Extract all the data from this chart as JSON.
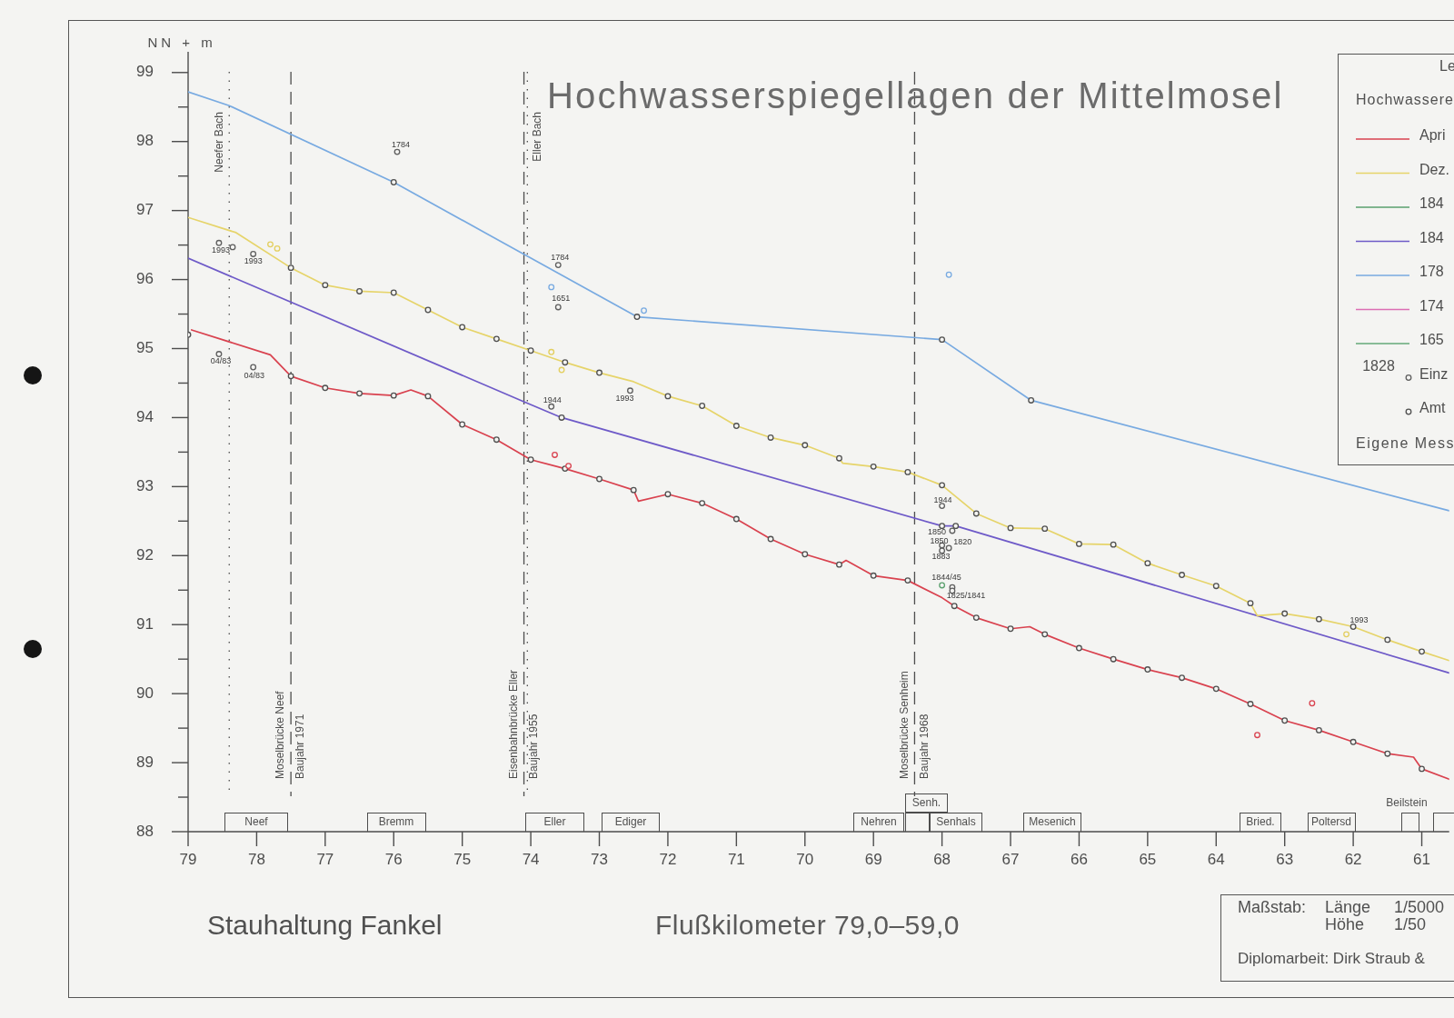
{
  "chart_data": {
    "type": "line",
    "title": "Hochwasserspiegellagen der Mittelmosel",
    "xlabel": "Flußkilometer 79,0–59,0",
    "ylabel": "NN + m",
    "legend_title": "Le",
    "legend": "top right",
    "grid": false,
    "xlim": [
      79,
      60.6
    ],
    "xticks": [
      79,
      78,
      77,
      76,
      75,
      74,
      73,
      72,
      71,
      70,
      69,
      68,
      67,
      66,
      65,
      64,
      63,
      62,
      61
    ],
    "ylim": [
      88,
      99.3
    ],
    "yticks": [
      88,
      {
        "value": 88.5,
        "label": null
      },
      89,
      {
        "value": 89.5,
        "label": null
      },
      90,
      {
        "value": 90.5,
        "label": null
      },
      91,
      {
        "value": 91.5,
        "label": null
      },
      92,
      {
        "value": 92.5,
        "label": null
      },
      93,
      {
        "value": 93.5,
        "label": null
      },
      94,
      {
        "value": 94.5,
        "label": null
      },
      95,
      {
        "value": 95.5,
        "label": null
      },
      96,
      {
        "value": 96.5,
        "label": null
      },
      97,
      {
        "value": 97.5,
        "label": null
      },
      98,
      {
        "value": 98.5,
        "label": null
      },
      99
    ],
    "series": [
      {
        "name": "Apri",
        "color": "#d9424f",
        "x": [
          78.95,
          77.8,
          77.5,
          77.0,
          76.5,
          76.0,
          75.75,
          75.5,
          75.0,
          74.5,
          74.0,
          73.5,
          73.0,
          72.5,
          72.43,
          72.0,
          71.5,
          71.0,
          70.5,
          70.0,
          69.5,
          69.4,
          69.0,
          68.5,
          68.0,
          67.82,
          67.5,
          67.0,
          66.72,
          66.5,
          66.0,
          65.5,
          65.0,
          64.5,
          64.0,
          63.5,
          63.0,
          62.5,
          62.0,
          61.5,
          61.12,
          61.0,
          60.6
        ],
        "values": [
          95.27,
          94.91,
          94.6,
          94.43,
          94.35,
          94.32,
          94.4,
          94.31,
          93.9,
          93.68,
          93.39,
          93.26,
          93.11,
          92.95,
          92.79,
          92.89,
          92.76,
          92.53,
          92.24,
          92.02,
          91.87,
          91.93,
          91.71,
          91.64,
          91.39,
          91.27,
          91.1,
          90.94,
          90.97,
          90.86,
          90.66,
          90.5,
          90.35,
          90.23,
          90.07,
          89.85,
          89.61,
          89.47,
          89.3,
          89.13,
          89.08,
          88.91,
          88.76
        ]
      },
      {
        "name": "Dez.",
        "color": "#e6d46a",
        "x": [
          79.0,
          78.3,
          77.5,
          77.0,
          76.5,
          76.0,
          75.5,
          75.0,
          74.5,
          74.0,
          73.5,
          73.0,
          72.5,
          72.0,
          71.5,
          71.0,
          70.5,
          70.0,
          69.5,
          69.45,
          69.0,
          68.5,
          68.0,
          67.5,
          67.0,
          66.5,
          66.0,
          65.5,
          65.0,
          64.5,
          64.0,
          63.5,
          63.4,
          63.0,
          62.5,
          62.0,
          61.5,
          61.0,
          60.6
        ],
        "values": [
          96.9,
          96.68,
          96.17,
          95.92,
          95.83,
          95.81,
          95.56,
          95.31,
          95.14,
          94.97,
          94.8,
          94.65,
          94.52,
          94.31,
          94.17,
          93.88,
          93.71,
          93.6,
          93.41,
          93.34,
          93.29,
          93.21,
          93.02,
          92.61,
          92.4,
          92.39,
          92.17,
          92.16,
          91.89,
          91.72,
          91.56,
          91.31,
          91.13,
          91.16,
          91.08,
          90.97,
          90.78,
          90.61,
          90.48
        ]
      },
      {
        "name": "184",
        "color": "#5aa06e"
      },
      {
        "name": "184",
        "color": "#6e5ac8",
        "x": [
          79.0,
          74.1,
          73.55,
          68.0,
          67.8,
          60.6
        ],
        "values": [
          96.31,
          94.23,
          94.0,
          92.43,
          92.43,
          90.3
        ]
      },
      {
        "name": "178",
        "color": "#78aae1",
        "x": [
          79.0,
          78.4,
          76.0,
          72.45,
          68.0,
          66.7,
          60.6
        ],
        "values": [
          98.72,
          98.52,
          97.41,
          95.46,
          95.13,
          94.25,
          92.65
        ]
      },
      {
        "name": "174",
        "color": "#dc6eb4"
      },
      {
        "name": "165",
        "color": "#64a878"
      },
      {
        "name": "Einz",
        "type": "scatter",
        "marker": "circle",
        "color": "#5f5f5f",
        "colors": [
          "#5f5f5f",
          "#5f5f5f",
          "#78aae1",
          "#5f5f5f",
          "#5f5f5f",
          "#5f5f5f",
          "#5f5f5f",
          "#5f5f5f",
          "#5f5f5f",
          "#5f5f5f",
          "#d9424f",
          "#d9424f",
          "#5f5f5f",
          "#78aae1",
          "#78aae1",
          "#5f5f5f",
          "#5f5f5f",
          "#5f5f5f",
          "#5f5f5f",
          "#5f5f5f",
          "#5aa06e",
          "#5f5f5f",
          "#5f5f5f",
          "#d9424f",
          "#d9424f",
          "#e3cf5f",
          "#e3cf5f",
          "#e3cf5f",
          "#e3cf5f",
          "#e3cf5f"
        ],
        "x": [
          75.95,
          73.6,
          73.7,
          73.6,
          73.7,
          78.55,
          78.35,
          78.05,
          78.55,
          78.05,
          73.65,
          73.45,
          72.55,
          72.35,
          67.9,
          68.0,
          67.85,
          68.0,
          67.9,
          68.0,
          68.0,
          67.85,
          67.85,
          62.6,
          63.4,
          77.8,
          77.7,
          73.7,
          73.55,
          62.1
        ],
        "values": [
          97.85,
          96.21,
          95.89,
          95.6,
          94.16,
          96.53,
          96.47,
          96.37,
          94.92,
          94.73,
          93.46,
          93.3,
          94.39,
          95.55,
          96.07,
          92.72,
          92.36,
          92.15,
          92.11,
          92.07,
          91.57,
          91.54,
          91.49,
          89.86,
          89.4,
          96.51,
          96.45,
          94.95,
          94.69,
          90.86
        ]
      },
      {
        "name": "Amt",
        "type": "scatter",
        "marker": "circle",
        "color": "#505050",
        "x": [
          79.0,
          77.5,
          77.0,
          76.5,
          76.0,
          75.5,
          75.0,
          74.5,
          74.0,
          73.5,
          73.0,
          72.5,
          72.0,
          71.5,
          71.0,
          70.5,
          70.0,
          69.5,
          69.0,
          68.5,
          67.82,
          67.5,
          67.0,
          66.5,
          66.0,
          65.5,
          65.0,
          64.5,
          64.0,
          63.5,
          63.0,
          62.5,
          62.0,
          61.5,
          61.0,
          77.5,
          77.0,
          76.5,
          76.0,
          75.5,
          75.0,
          74.5,
          74.0,
          73.5,
          73.0,
          72.0,
          71.5,
          71.0,
          70.5,
          70.0,
          69.5,
          69.0,
          68.5,
          68.0,
          67.5,
          67.0,
          66.5,
          66.0,
          65.5,
          65.0,
          64.5,
          64.0,
          63.5,
          63.0,
          62.5,
          62.0,
          61.5,
          61.0,
          76.0,
          72.45,
          68.0,
          66.7,
          73.55,
          68.0,
          67.8
        ],
        "values": [
          95.2,
          94.6,
          94.43,
          94.35,
          94.32,
          94.31,
          93.9,
          93.68,
          93.39,
          93.26,
          93.11,
          92.95,
          92.89,
          92.76,
          92.53,
          92.24,
          92.02,
          91.87,
          91.71,
          91.64,
          91.27,
          91.1,
          90.94,
          90.86,
          90.66,
          90.5,
          90.35,
          90.23,
          90.07,
          89.85,
          89.61,
          89.47,
          89.3,
          89.13,
          88.91,
          96.17,
          95.92,
          95.83,
          95.81,
          95.56,
          95.31,
          95.14,
          94.97,
          94.8,
          94.65,
          94.31,
          94.17,
          93.88,
          93.71,
          93.6,
          93.41,
          93.29,
          93.21,
          93.02,
          92.61,
          92.4,
          92.39,
          92.17,
          92.16,
          91.89,
          91.72,
          91.56,
          91.31,
          91.16,
          91.08,
          90.97,
          90.78,
          90.61,
          97.41,
          95.46,
          95.13,
          94.25,
          94.0,
          92.43,
          92.43
        ]
      }
    ],
    "ref_lines": [
      {
        "axis": "x",
        "value": 78.4,
        "label": "Neefer Bach",
        "line_style": "dotted"
      },
      {
        "axis": "x",
        "value": 77.5,
        "label": "Moselbrücke Neef\nBaujahr 1971",
        "line_style": "dashed"
      },
      {
        "axis": "x",
        "value": 74.1,
        "label": "Eisenbahnbrücke Eller\nBaujahr 1955",
        "line_style": "dashed"
      },
      {
        "axis": "x",
        "value": 74.05,
        "label": "Eller Bach",
        "line_style": "dotted"
      },
      {
        "axis": "x",
        "value": 68.4,
        "label": "Moselbrücke Senheim\nBaujahr 1968",
        "line_style": "dashed"
      }
    ],
    "annotations": [
      "Hochwassere",
      "Eigene Mess",
      "1828",
      "Stauhaltung Fankel",
      "Maßstab:",
      "Länge",
      "1/5000",
      "Höhe",
      "1/50",
      "Diplomarbeit: Dirk Straub &",
      "Neef",
      "Bremm",
      "Eller",
      "Ediger",
      "Nehren",
      "Senh.",
      "Senhals",
      "Mesenich",
      "Bried.",
      "Poltersd",
      "Beilstein",
      {
        "text": "1784",
        "x": 75.95,
        "y": 97.85
      },
      {
        "text": "1784",
        "x": 73.6,
        "y": 96.21
      },
      {
        "text": "1651",
        "x": 73.6,
        "y": 95.6
      },
      {
        "text": "1944",
        "x": 73.7,
        "y": 94.16
      },
      {
        "text": "1993",
        "x": 78.55,
        "y": 96.53
      },
      {
        "text": "1993",
        "x": 78.05,
        "y": 96.37
      },
      {
        "text": "04/83",
        "x": 78.55,
        "y": 94.92
      },
      {
        "text": "04/83",
        "x": 78.05,
        "y": 94.73
      },
      {
        "text": "1993",
        "x": 72.55,
        "y": 94.39
      },
      {
        "text": "1944",
        "x": 68.0,
        "y": 92.72
      },
      {
        "text": "1850",
        "x": 67.85,
        "y": 92.36
      },
      {
        "text": "1850",
        "x": 68.0,
        "y": 92.15
      },
      {
        "text": "1820",
        "x": 67.9,
        "y": 92.11
      },
      {
        "text": "1883",
        "x": 68.0,
        "y": 92.07
      },
      {
        "text": "1844/45",
        "x": 68.0,
        "y": 91.57
      },
      {
        "text": "1825/1841",
        "x": 67.85,
        "y": 91.49
      },
      {
        "text": "1993",
        "x": 62.1,
        "y": 90.86
      }
    ]
  }
}
